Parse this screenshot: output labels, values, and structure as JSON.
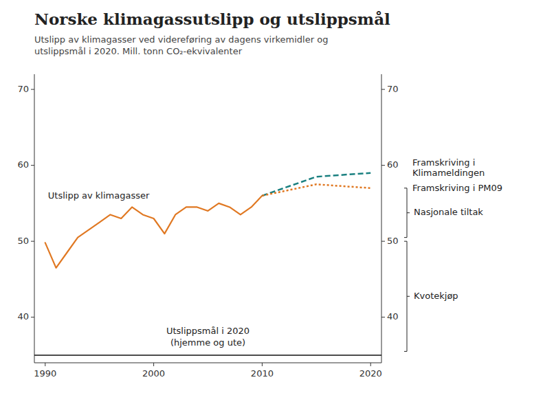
{
  "chart_data": {
    "type": "line",
    "title": "Norske klimagassutslipp og utslippsmål",
    "subtitle": [
      "Utslipp av klimagasser ved videreføring av dagens virkemidler og",
      "utslippsmål i 2020. Mill. tonn CO₂-ekvivalenter"
    ],
    "series": [
      {
        "name": "Utslipp av klimagasser",
        "color": "#e07822",
        "line_style": "solid",
        "x": [
          1990,
          1991,
          1992,
          1993,
          1994,
          1995,
          1996,
          1997,
          1998,
          1999,
          2000,
          2001,
          2002,
          2003,
          2004,
          2005,
          2006,
          2007,
          2008,
          2009,
          2010
        ],
        "values": [
          49.8,
          46.5,
          48.5,
          50.5,
          51.5,
          52.5,
          53.5,
          53.0,
          54.5,
          53.5,
          53.0,
          51.0,
          53.5,
          54.5,
          54.5,
          54.0,
          55.0,
          54.5,
          53.5,
          54.5,
          56.0
        ]
      },
      {
        "name": "Framskriving i Klimameldingen",
        "color": "#1a8080",
        "line_style": "dashed",
        "x": [
          2010,
          2015,
          2020
        ],
        "values": [
          56.0,
          58.5,
          59.0
        ]
      },
      {
        "name": "Framskriving i PM09",
        "color": "#e07822",
        "line_style": "dotted",
        "x": [
          2010,
          2015,
          2020
        ],
        "values": [
          56.0,
          57.5,
          57.0
        ]
      }
    ],
    "reference_line": {
      "value": 35.0,
      "label": [
        "Utslippsmål i 2020",
        "(hjemme og ute)"
      ]
    },
    "annotations": [
      {
        "text": "Nasjonale tiltak",
        "from": 50.5,
        "to": 57.0
      },
      {
        "text": "Kvotekjøp",
        "from": 35.5,
        "to": 50.0
      }
    ],
    "xlim": [
      1989,
      2021
    ],
    "xticks": [
      1990,
      2000,
      2010,
      2020
    ],
    "ylim": [
      34,
      72
    ],
    "yticks": [
      40,
      50,
      60,
      70
    ],
    "y2lim": [
      34,
      72
    ],
    "y2ticks": [
      40,
      50,
      60,
      70
    ],
    "grid": false
  }
}
